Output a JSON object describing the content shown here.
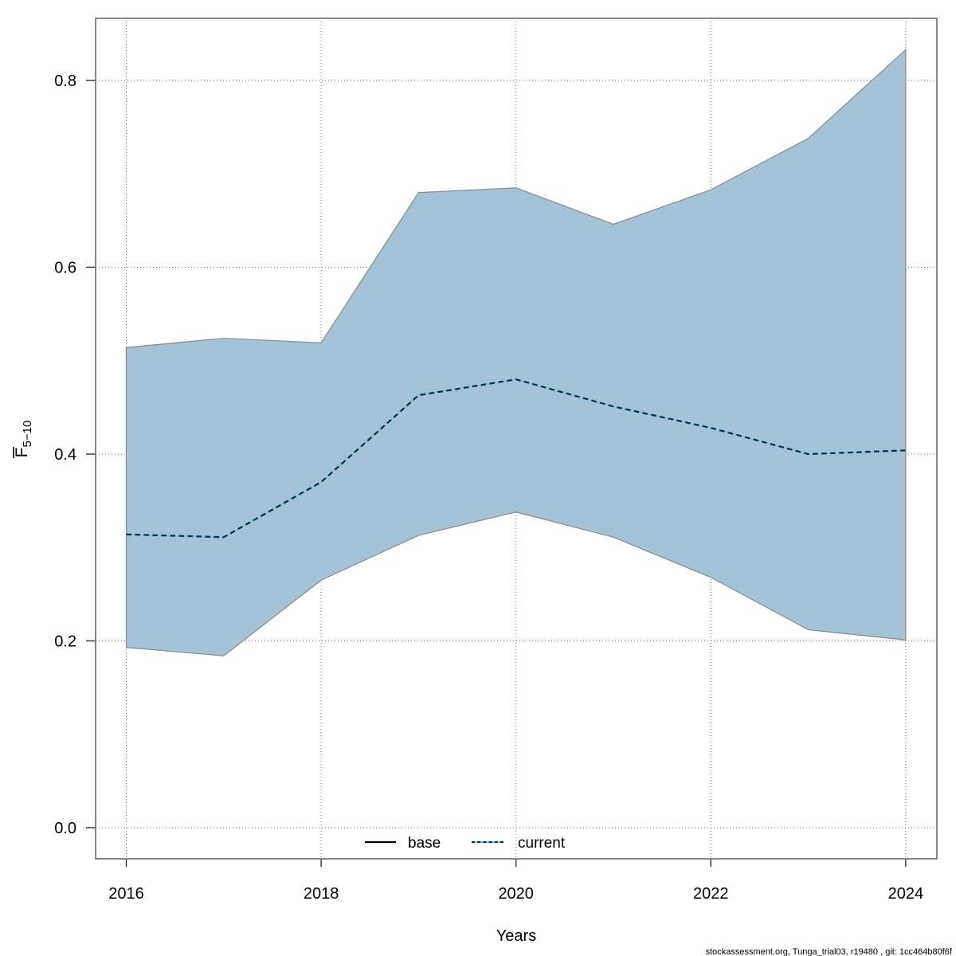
{
  "chart_data": {
    "type": "area",
    "title": "",
    "xlabel": "Years",
    "ylabel": {
      "main": "F",
      "overline": true,
      "subscript": "5−10"
    },
    "x": [
      2016,
      2017,
      2018,
      2019,
      2020,
      2021,
      2022,
      2023,
      2024
    ],
    "series": [
      {
        "name": "current",
        "role": "median line (dotted)",
        "values": [
          0.314,
          0.311,
          0.37,
          0.463,
          0.48,
          0.451,
          0.428,
          0.4,
          0.404
        ]
      },
      {
        "name": "ci_upper",
        "role": "confidence band upper edge",
        "values": [
          0.514,
          0.524,
          0.519,
          0.68,
          0.685,
          0.646,
          0.683,
          0.738,
          0.833
        ]
      },
      {
        "name": "ci_lower",
        "role": "confidence band lower edge",
        "values": [
          0.193,
          0.184,
          0.265,
          0.313,
          0.338,
          0.311,
          0.268,
          0.212,
          0.201
        ]
      }
    ],
    "xlim": [
      2015.685,
      2024.32
    ],
    "ylim": [
      -0.0333,
      0.8665
    ],
    "x_ticks": [
      "2016",
      "2018",
      "2020",
      "2022",
      "2024"
    ],
    "y_ticks": [
      "0.0",
      "0.2",
      "0.4",
      "0.6",
      "0.8"
    ],
    "grid": "dotted both directions at ticks",
    "legend": {
      "position": "bottom-center-inside",
      "entries": [
        {
          "label": "base",
          "line": "solid",
          "color": "#000000"
        },
        {
          "label": "current",
          "line": "dotted",
          "color_under": "#7FC4E4",
          "color_dash": "#0E2A3E"
        }
      ]
    },
    "colors": {
      "band_fill": "#A5C3D7",
      "band_border": "#8E8E8E",
      "current_underlay": "#7FC4E4",
      "current_dash": "#0E2A3E",
      "grid": "#6f6f6f",
      "box": "#6b6b6b"
    }
  },
  "footer": "stockassessment.org, Tunga_trial03, r19480 , git: 1cc464b80f6f"
}
